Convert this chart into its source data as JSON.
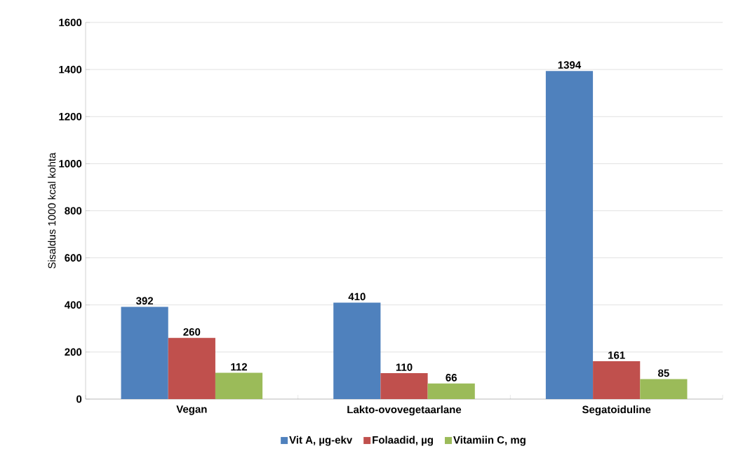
{
  "chart_data": {
    "type": "bar",
    "ylabel": "Sisaldus 1000 kcal kohta",
    "categories": [
      "Vegan",
      "Lakto-ovovegetaarlane",
      "Segatoiduline"
    ],
    "series": [
      {
        "name": "Vit A, µg-ekv",
        "color": "#4f81bd",
        "values": [
          392,
          410,
          1394
        ]
      },
      {
        "name": "Folaadid, µg",
        "color": "#c0504d",
        "values": [
          260,
          110,
          161
        ]
      },
      {
        "name": "Vitamiin C, mg",
        "color": "#9bbb59",
        "values": [
          112,
          66,
          85
        ]
      }
    ],
    "ylim": [
      0,
      1600
    ],
    "yticks": [
      0,
      200,
      400,
      600,
      800,
      1000,
      1200,
      1400,
      1600
    ],
    "grid": "y",
    "legend": "bottom",
    "data_labels": true
  }
}
